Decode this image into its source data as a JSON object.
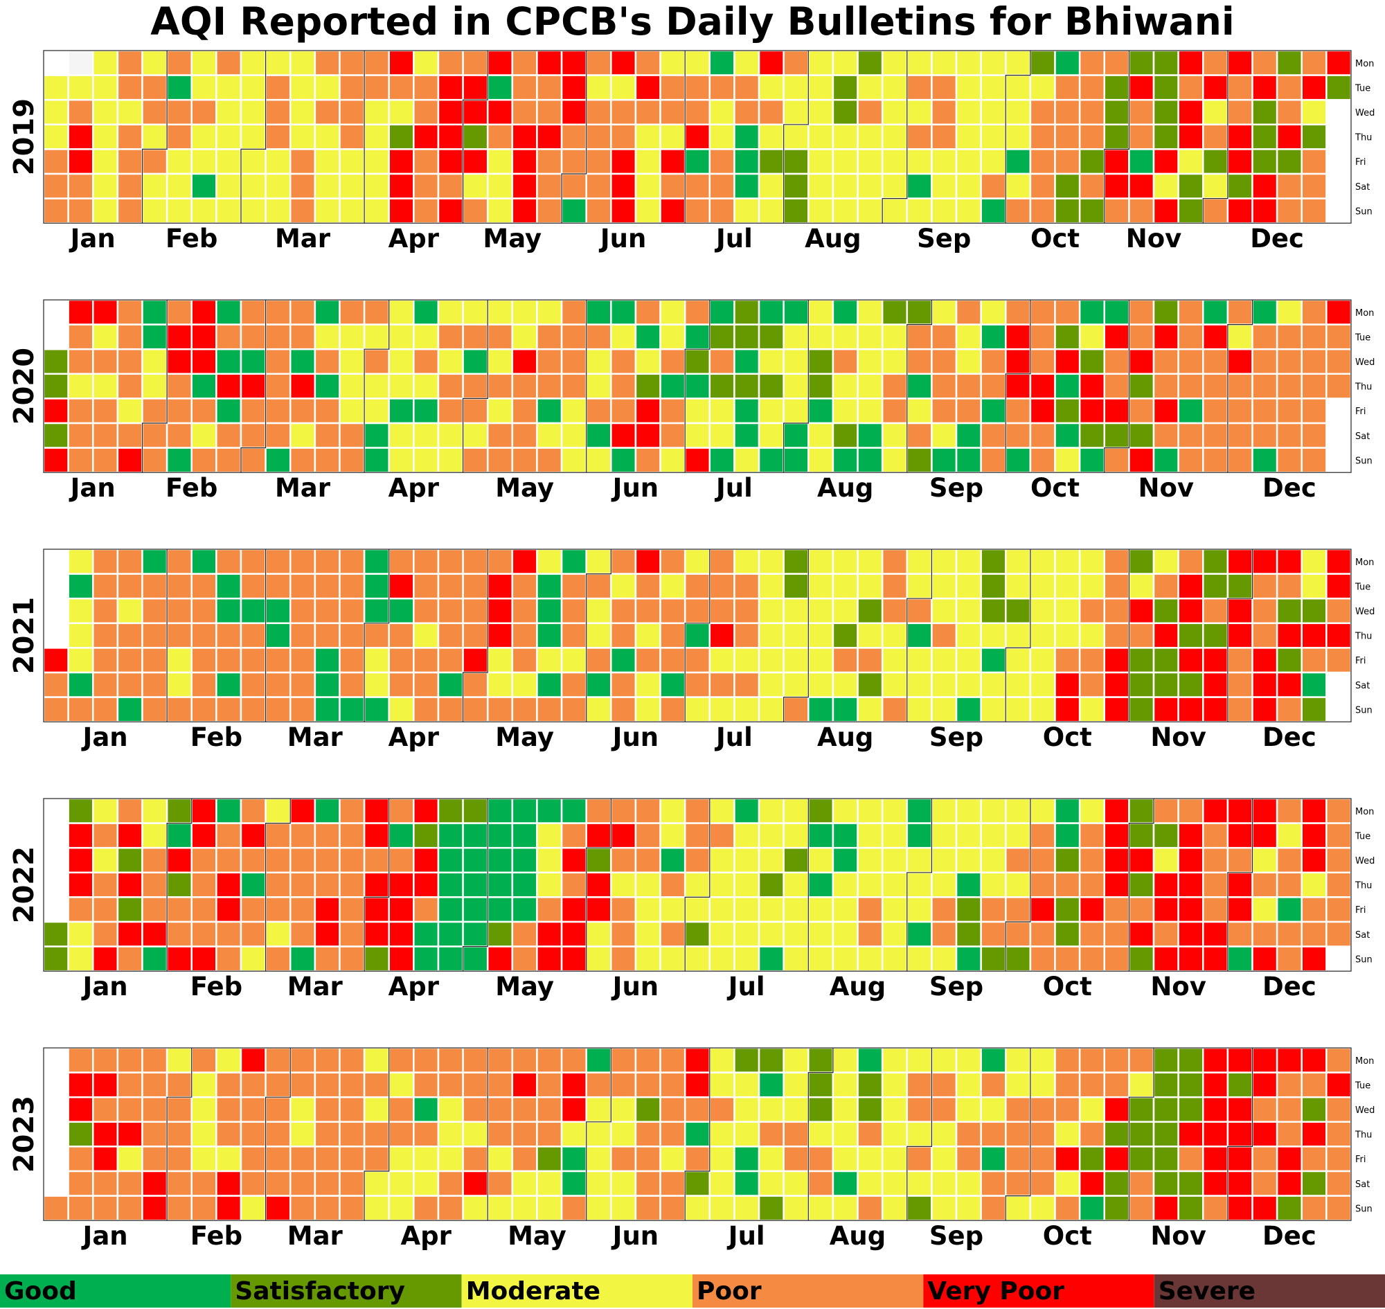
{
  "chart_data": {
    "type": "heatmap",
    "subtype": "calendar",
    "title": "AQI Reported in CPCB's Daily Bulletins for Bhiwani",
    "categories": [
      "Good",
      "Satisfactory",
      "Moderate",
      "Poor",
      "Very Poor",
      "Severe"
    ],
    "colors": {
      "Good": "#00b050",
      "Satisfactory": "#669900",
      "Moderate": "#f2f542",
      "Poor": "#f58a42",
      "Very Poor": "#ff0000",
      "Severe": "#6b3636",
      "missing": "#f5f5f5"
    },
    "weekday_labels": [
      "Mon",
      "Tue",
      "Wed",
      "Thu",
      "Fri",
      "Sat",
      "Sun"
    ],
    "month_labels": [
      "Jan",
      "Feb",
      "Mar",
      "Apr",
      "May",
      "Jun",
      "Jul",
      "Aug",
      "Sep",
      "Oct",
      "Nov",
      "Dec"
    ],
    "legend": {
      "position": "bottom",
      "entries": [
        "Good",
        "Satisfactory",
        "Moderate",
        "Poor",
        "Very Poor",
        "Severe"
      ]
    },
    "years": [
      {
        "year": "2019",
        "week_strings": {
          "Mon": "XMPMPMPMMMPPPVMPPVPVVPVPMMGMVPMMSMMMMMMSGPPSSVPVPSPVV",
          "Tue": "MMMPPGMMMPMMPPPPVVGPPVMMVPPPPMMMSMMPPMMMMPPSVSPVPVPVS",
          "Wed": "MPMMPPPMMPMPPMMPVVVPPVPPPPPMPPMMSPMMPMMMPPPSPSVMPSPMV",
          "Thu": "MVMPMPMMMPMMPMSVVSPVVPPPMMVMGMMMMMMPPMMMPPPSPSVPVSVS",
          "Fri": "PVMPPMMMMMPMMMVPVVMVPPPVMVGPGSSMMMMMMMMGPPSVGVMSVSS",
          "Sat": "PPMPMMGMMMPMMMVPPMMVPPPVMPPPGMSMMMMGMMPMPSPVVMSMSV",
          "Sun": "PPMPMMMMMMPMMMVPVPMVPGPVMVPPMMSMMMMMMMGPPSSPPVSPVV"
        }
      },
      {
        "year": "2020",
        "week_strings": {
          "Mon": "VVPGPVGPPPGPPMGMMMMMPGGPMPGSGGMGMSSMPMPPPGGPSPGPGMPV",
          "Tue": "PMPGVVPPPPMMMMMPPPMPPPMGMGSSSMMMMMPPMGVPSMVPVPVM",
          "Wed": "SPPPMVVGGPGPMPMPMGMVPPMPMPSPGMMSPMMPPMPVPVSPVPPPVP",
          "Thu": "SMMPMPGVVPVGMMMMPPPPPPMPSGGSSSMSMMPGPPPVVGVPSPPPP",
          "Fri": "VPPMPPPGPPPPMMGGPPMPGMPPVPMMGMMGMMPMPPGPVSVVPVGPPP",
          "Sat": "SPPPPPMPPPMPPGMMMMPPMMGVVPMMGMGMSGMPMGPPPGSSSPPPP",
          "Sun": "VPPVPGPPPGPPPGMMMPPPPMMGPMVGMGGMGGMSGGPGPMGPVGPPPGPP"
        }
      },
      {
        "year": "2021",
        "week_strings": {
          "Mon": "MPPGPGPPPPPPGPPPPPVMGMPVPMPMMSMMMPMMMSMMMMPSMPSVVVMVVG",
          "Tue": "GPPPPPGPPPPPGVPPPVPGPPMPMPPPMSMMMPMMMSMMMMPMPVSSPPMVVP",
          "Wed": "MPMPPPGGGPPPGGPPPVPGPMPPPPPPMMMMSPPMMSSMMPPVSVPVPSSP",
          "Thu": "MPPPPPPPGPPPPPMPPVPGPMPMPGVPMMMSMMGPMMMMMMPPVSSVPVVVS",
          "Fri": "VMPPPMPPPPPGPMPPPVMPMMPGPPPMMMMMPPMMMMGMMPPVSSVVPVSP",
          "Sat": "PGPPPMPGPPPGPMPPGPMMGPGPMGPPPMMMMSMMMMMMMVPVSSSVPVVG",
          "Sun": "PPPGPPPPPPPGGGMPPPPPPPMPMPMMMMPGGMPMMGMMMVMVSVVVPVPS"
        }
      },
      {
        "year": "2022",
        "week_strings": {
          "Mon": "SMPMSVGPMVGPVPVSSGGGGPPPMPMGMMSMMMGMMMMMGMVSPPVVVPVP",
          "Tue": "VPVMGVPVPPPPVGSGGGGMPVVPMPPMMMGGMMGMMMMPGPVSSVPVVMVP",
          "Wed": "VMSPVPPPPPPPPPVGGGGMVSPPGPMMMSMGMMMMMMPPSPVVMVPPMPV",
          "Thu": "VPVPSPVGPPPPVVVGGGGMPVMMPMMMSMGMMMMMGMMPPPVSVVPVPPMP",
          "Fri": "PPSPPPVPPPVPVVPGGGGPVVPMMMMMMMMMPMMPSPPVSVPPVVPVMG",
          "Sat": "SMPVVPPPPMPVPVVGGGSPVVMPMPSMMMMMMPMGPSPPPSPPVPVVPP",
          "Sun": "SMVPGVVPMPGPPSVGGGVPVVMPMMMMMGMMMMMMMGSSPPPPSVVVGVPVPP"
        }
      },
      {
        "year": "2023",
        "week_strings": {
          "Mon": "PPPPMPMVPPPPMPPPPPPPPGPPPVMSSMSMGMMMMGMMPPPPSSVVVVVPVV",
          "Tue": "VVPPPMPPPPPPPMPPPPVPVPPPPVMMGMSMSMPPMPMMPPPMSSVSVPPVV",
          "Wed": "VPPPPMPPPMPPMPGMPPPPVMMSPPPMMMSMSMPPMMPPPMVSSSVVPPSPV",
          "Thu": "SVVPPMPPPMPPPPPMMPPPMMMPPGMMPPMMPMMMPPPPMPSSSVVVVPV",
          "Fri": "PVMPPMMPPPPPPMMMPMPSGMPPMPMGMPPMMMPMPGPPVSVSSPVVPV",
          "Sat": "PPPVPPVPPPPPMMMPVPMMGMMPPSMGMMPGMMMMMPPPMVSPSSVVPVS",
          "Sun": "PPPPVPPVMVPPPMMPPMMMMPMMPPMMMSMMMPMSMMPMMPGSPVSPVVSP"
        }
      }
    ]
  }
}
